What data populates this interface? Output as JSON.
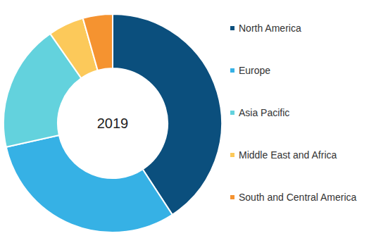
{
  "chart_data": {
    "type": "pie",
    "title": "2019",
    "categories": [
      "North America",
      "Europe",
      "Asia Pacific",
      "Middle East and Africa",
      "South and Central America"
    ],
    "values": [
      40.8,
      30.7,
      18.8,
      5.3,
      4.4
    ],
    "colors": [
      "#0b4f7d",
      "#36b1e5",
      "#63d2dd",
      "#fcc95a",
      "#f59330"
    ],
    "legend": "right"
  }
}
